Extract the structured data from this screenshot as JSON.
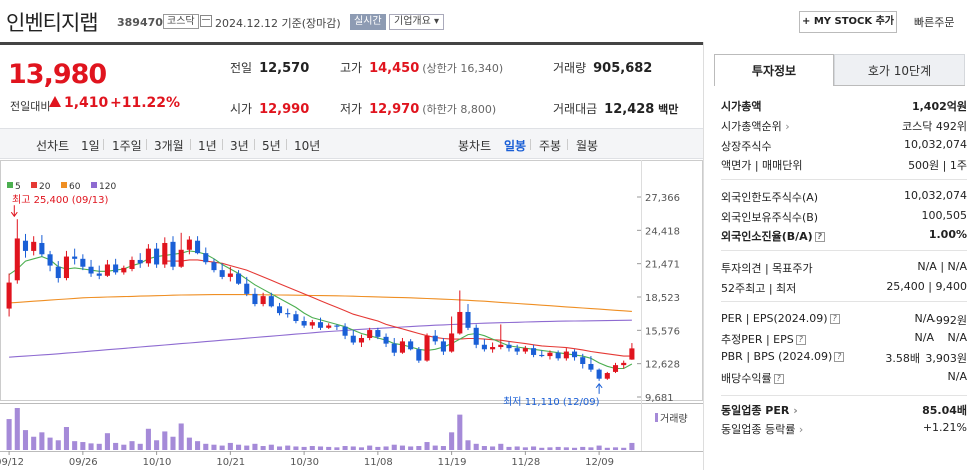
{
  "stock": {
    "name": "인벤티지랩",
    "code": "389470",
    "market": "코스닥",
    "date_text": "2024.12.12 기준(장마감)",
    "live_label": "실시간",
    "company_overview": "기업개요 ▾",
    "mystock_label": "+ MY STOCK 추가",
    "quick_order": "빠른주문"
  },
  "price": {
    "current": "13,980",
    "change_label": "전일대비",
    "change": "1,410",
    "change_pct": "+11.22%"
  },
  "quote": {
    "prev_label": "전일",
    "prev": "12,570",
    "high_label": "고가",
    "high": "14,450",
    "upper_limit": "(상한가 16,340)",
    "volume_label": "거래량",
    "volume": "905,682",
    "open_label": "시가",
    "open": "12,990",
    "low_label": "저가",
    "low": "12,970",
    "lower_limit": "(하한가 8,800)",
    "amount_label": "거래대금",
    "amount": "12,428",
    "amount_unit": "백만"
  },
  "chart_toolbar": {
    "line_label": "선차트",
    "periods": [
      "1일",
      "1주일",
      "3개월",
      "1년",
      "3년",
      "5년",
      "10년"
    ],
    "candle_label": "봉차트",
    "candle_periods": [
      "일봉",
      "주봉",
      "월봉"
    ],
    "active_candle": "일봉"
  },
  "colors": {
    "up": "#e0141e",
    "down": "#1a5fd6",
    "ma5": "#4caf50",
    "ma20": "#e53935",
    "ma60": "#ef8f24",
    "ma120": "#8e6bd1",
    "volume": "#a58ad8"
  },
  "chart_data": {
    "type": "candlestick",
    "legend": [
      "5",
      "20",
      "60",
      "120"
    ],
    "y_ticks": [
      "27,366",
      "24,418",
      "21,471",
      "18,523",
      "15,576",
      "12,628",
      "9,681"
    ],
    "y_min": 9681,
    "y_max": 27366,
    "x_labels": [
      "09/12",
      "09/26",
      "10/10",
      "10/21",
      "10/30",
      "11/08",
      "11/19",
      "11/28",
      "12/09"
    ],
    "x_label_index": [
      0,
      9,
      18,
      27,
      36,
      45,
      54,
      63,
      72
    ],
    "max_annotation": "최고 25,400 (09/13)",
    "min_annotation": "최저 11,110 (12/09)",
    "max_index": 1,
    "min_index": 72,
    "volume_label": "거래량",
    "candles": [
      [
        17500,
        20600,
        16800,
        19800
      ],
      [
        20000,
        25400,
        19700,
        23700
      ],
      [
        23500,
        24100,
        22000,
        22600
      ],
      [
        22600,
        23900,
        22200,
        23400
      ],
      [
        23300,
        24000,
        22100,
        22300
      ],
      [
        22300,
        22600,
        20800,
        21300
      ],
      [
        21200,
        21700,
        19800,
        20200
      ],
      [
        20200,
        22600,
        20000,
        22100
      ],
      [
        22100,
        22800,
        21400,
        21900
      ],
      [
        21900,
        22300,
        20900,
        21200
      ],
      [
        21200,
        21800,
        20300,
        20600
      ],
      [
        20600,
        21300,
        20100,
        20400
      ],
      [
        20400,
        21800,
        20300,
        21400
      ],
      [
        21400,
        21900,
        20500,
        20700
      ],
      [
        20700,
        21300,
        20500,
        21100
      ],
      [
        21000,
        22100,
        20800,
        21800
      ],
      [
        21800,
        22400,
        21100,
        21500
      ],
      [
        21500,
        23200,
        21200,
        22800
      ],
      [
        22800,
        23300,
        21100,
        21400
      ],
      [
        21400,
        23800,
        21100,
        23300
      ],
      [
        23400,
        23900,
        20900,
        21200
      ],
      [
        21200,
        24200,
        21100,
        22700
      ],
      [
        22700,
        23900,
        22300,
        23600
      ],
      [
        23500,
        23900,
        22300,
        22400
      ],
      [
        22400,
        22900,
        21400,
        21600
      ],
      [
        21600,
        21900,
        20700,
        20900
      ],
      [
        20900,
        21500,
        20100,
        20300
      ],
      [
        20300,
        21200,
        19900,
        20600
      ],
      [
        20600,
        20900,
        19600,
        19700
      ],
      [
        19700,
        20300,
        18600,
        18800
      ],
      [
        18800,
        19300,
        17700,
        17900
      ],
      [
        17900,
        18900,
        17700,
        18600
      ],
      [
        18600,
        18900,
        17600,
        17700
      ],
      [
        17700,
        18000,
        16900,
        17100
      ],
      [
        17100,
        17500,
        16700,
        17000
      ],
      [
        17000,
        17300,
        16200,
        16400
      ],
      [
        16400,
        16800,
        15800,
        16000
      ],
      [
        16000,
        16500,
        15700,
        16300
      ],
      [
        16300,
        16700,
        15600,
        15800
      ],
      [
        15800,
        16200,
        15700,
        16000
      ],
      [
        16000,
        16100,
        15600,
        15900
      ],
      [
        15900,
        16200,
        14800,
        15100
      ],
      [
        15100,
        15600,
        14300,
        14500
      ],
      [
        14500,
        15200,
        14100,
        14900
      ],
      [
        14900,
        15800,
        14700,
        15600
      ],
      [
        15600,
        15800,
        14800,
        15000
      ],
      [
        15000,
        15300,
        14100,
        14400
      ],
      [
        14400,
        14900,
        13300,
        13600
      ],
      [
        13600,
        14900,
        13500,
        14600
      ],
      [
        14600,
        14800,
        13800,
        13900
      ],
      [
        13900,
        14100,
        12700,
        12900
      ],
      [
        12900,
        15300,
        12800,
        15100
      ],
      [
        15100,
        15600,
        14300,
        14600
      ],
      [
        14600,
        14900,
        13400,
        13700
      ],
      [
        13700,
        16800,
        13600,
        15300
      ],
      [
        15300,
        19100,
        15200,
        17200
      ],
      [
        17200,
        17900,
        15600,
        15800
      ],
      [
        15800,
        16100,
        14000,
        14300
      ],
      [
        14300,
        14800,
        13700,
        13900
      ],
      [
        13900,
        14500,
        13600,
        14100
      ],
      [
        14100,
        16100,
        13900,
        14300
      ],
      [
        14300,
        14600,
        13700,
        14000
      ],
      [
        14000,
        14300,
        13400,
        13700
      ],
      [
        13700,
        14200,
        13500,
        14000
      ],
      [
        14000,
        14300,
        13200,
        13400
      ],
      [
        13400,
        13800,
        13200,
        13300
      ],
      [
        13300,
        13800,
        13000,
        13600
      ],
      [
        13600,
        13800,
        12900,
        13100
      ],
      [
        13100,
        14000,
        12900,
        13700
      ],
      [
        13700,
        13900,
        12900,
        13200
      ],
      [
        13200,
        13500,
        12200,
        12600
      ],
      [
        12600,
        13300,
        11900,
        12100
      ],
      [
        12100,
        12200,
        11110,
        11300
      ],
      [
        11300,
        11900,
        11200,
        11800
      ],
      [
        11900,
        12700,
        11800,
        12500
      ],
      [
        12500,
        12900,
        12200,
        12700
      ],
      [
        12990,
        14450,
        12970,
        13980
      ]
    ],
    "ma5": [
      20500,
      21000,
      21700,
      21900,
      22100,
      21800,
      21200,
      21000,
      21100,
      21000,
      20900,
      20800,
      20800,
      20900,
      21000,
      21300,
      21500,
      21900,
      22100,
      22200,
      22300,
      22400,
      22600,
      22500,
      22300,
      21900,
      21400,
      21000,
      20600,
      20100,
      19600,
      19200,
      18800,
      18400,
      18000,
      17600,
      17100,
      16700,
      16500,
      16300,
      16100,
      15900,
      15600,
      15300,
      15100,
      14900,
      14700,
      14400,
      14300,
      14100,
      13900,
      13800,
      13900,
      14100,
      14400,
      14800,
      15200,
      15300,
      15100,
      14800,
      14500,
      14200,
      14100,
      14000,
      13900,
      13800,
      13700,
      13600,
      13500,
      13400,
      13300,
      13100,
      12700,
      12400,
      12200,
      12200,
      12600
    ],
    "ma20": [
      null,
      null,
      null,
      null,
      null,
      null,
      null,
      null,
      null,
      null,
      null,
      null,
      null,
      null,
      null,
      null,
      null,
      null,
      null,
      21700,
      21700,
      21700,
      21800,
      21800,
      21700,
      21600,
      21500,
      21300,
      21100,
      20900,
      20600,
      20300,
      20000,
      19700,
      19400,
      19100,
      18800,
      18500,
      18200,
      17900,
      17600,
      17300,
      17000,
      16800,
      16600,
      16400,
      16100,
      15900,
      15700,
      15500,
      15300,
      15100,
      14950,
      14850,
      14800,
      14800,
      14850,
      14850,
      14800,
      14750,
      14700,
      14600,
      14500,
      14400,
      14300,
      14200,
      14150,
      14100,
      14050,
      13950,
      13850,
      13700,
      13600,
      13500,
      13400,
      13300,
      13300
    ],
    "ma60": [
      18000,
      18050,
      18100,
      18150,
      18200,
      18250,
      18300,
      18350,
      18400,
      18450,
      18480,
      18500,
      18520,
      18540,
      18560,
      18580,
      18600,
      18620,
      18640,
      18660,
      18680,
      18700,
      18710,
      18720,
      18730,
      18740,
      18740,
      18740,
      18740,
      18740,
      18730,
      18720,
      18710,
      18700,
      18690,
      18680,
      18670,
      18660,
      18650,
      18640,
      18630,
      18610,
      18590,
      18570,
      18550,
      18530,
      18510,
      18490,
      18470,
      18450,
      18420,
      18390,
      18360,
      18330,
      18300,
      18270,
      18230,
      18190,
      18150,
      18100,
      18050,
      18000,
      17950,
      17900,
      17850,
      17800,
      17750,
      17700,
      17650,
      17600,
      17550,
      17500,
      17450,
      17400,
      17350,
      17300,
      17250
    ],
    "ma120": [
      13200,
      13250,
      13300,
      13350,
      13400,
      13450,
      13500,
      13560,
      13620,
      13680,
      13740,
      13800,
      13860,
      13920,
      13980,
      14040,
      14100,
      14160,
      14220,
      14280,
      14340,
      14400,
      14460,
      14520,
      14580,
      14640,
      14700,
      14760,
      14820,
      14880,
      14940,
      15000,
      15060,
      15120,
      15180,
      15240,
      15300,
      15360,
      15420,
      15470,
      15520,
      15570,
      15620,
      15670,
      15710,
      15750,
      15790,
      15830,
      15870,
      15910,
      15950,
      15990,
      16030,
      16060,
      16090,
      16120,
      16150,
      16180,
      16210,
      16230,
      16250,
      16270,
      16290,
      16310,
      16330,
      16350,
      16370,
      16380,
      16390,
      16400,
      16410,
      16420,
      16430,
      16440,
      16450,
      16460,
      16470
    ],
    "volume": [
      70,
      95,
      45,
      30,
      40,
      28,
      22,
      52,
      20,
      18,
      15,
      14,
      38,
      16,
      12,
      20,
      14,
      48,
      22,
      42,
      30,
      60,
      28,
      20,
      14,
      12,
      10,
      16,
      12,
      10,
      14,
      9,
      12,
      8,
      10,
      8,
      7,
      9,
      8,
      7,
      6,
      9,
      8,
      6,
      10,
      7,
      8,
      12,
      10,
      8,
      9,
      18,
      10,
      9,
      40,
      80,
      22,
      14,
      9,
      8,
      14,
      7,
      8,
      6,
      8,
      5,
      6,
      7,
      6,
      5,
      7,
      6,
      10,
      5,
      6,
      5,
      16
    ]
  },
  "panel": {
    "tab_active": "투자정보",
    "tab_inactive": "호가 10단계",
    "market_cap_label": "시가총액",
    "market_cap": "1,402억원",
    "market_cap_rank_label": "시가총액순위",
    "market_cap_rank": "코스닥 492위",
    "shares_label": "상장주식수",
    "shares": "10,032,074",
    "par_label": "액면가 | 매매단위",
    "par": "500원 | 1주",
    "foreign_limit_label": "외국인한도주식수(A)",
    "foreign_limit": "10,032,074",
    "foreign_hold_label": "외국인보유주식수(B)",
    "foreign_hold": "100,505",
    "foreign_ratio_label": "외국인소진율(B/A)",
    "foreign_ratio": "1.00%",
    "opinion_label": "투자의견 | 목표주가",
    "opinion": "N/A | N/A",
    "week52_label": "52주최고 | 최저",
    "week52": "25,400 | 9,400",
    "per_label": "PER | EPS(2024.09)",
    "per": "N/A",
    "eps": "-992원",
    "est_per_label": "추정PER | EPS",
    "est_per": "N/A",
    "est_eps": "N/A",
    "pbr_label": "PBR | BPS (2024.09)",
    "pbr": "3.58배",
    "bps": "3,903원",
    "dividend_label": "배당수익률",
    "dividend": "N/A",
    "sector_per_label": "동일업종 PER",
    "sector_per": "85.04배",
    "sector_change_label": "동일업종 등락률",
    "sector_change": "+1.21%"
  }
}
